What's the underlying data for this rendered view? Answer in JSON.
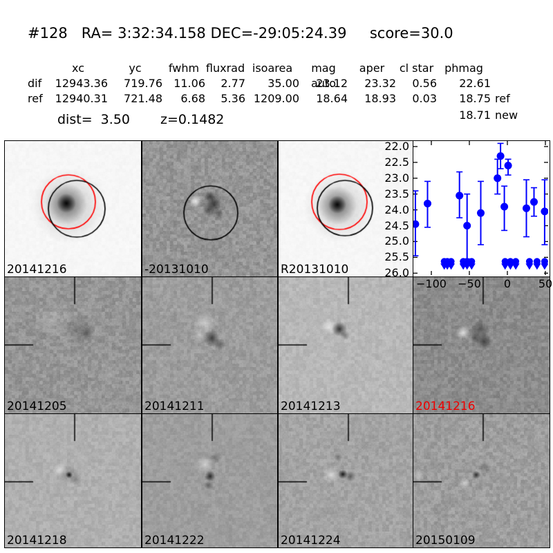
{
  "header": {
    "title": "#128   RA= 3:32:34.158 DEC=-29:05:24.39     score=30.0"
  },
  "table": {
    "columns": [
      "xc",
      "yc",
      "fwhm",
      "fluxrad",
      "isoarea",
      "mag auto",
      "aper",
      "cl star",
      "phmag"
    ],
    "rows": [
      {
        "label": "dif",
        "values": [
          "12943.36",
          "719.76",
          "11.06",
          "2.77",
          "35.00",
          "23.12",
          "23.32",
          "0.56",
          "22.61"
        ],
        "suffix": ""
      },
      {
        "label": "ref",
        "values": [
          "12940.31",
          "721.48",
          "6.68",
          "5.36",
          "1209.00",
          "18.64",
          "18.93",
          "0.03",
          "18.75"
        ],
        "suffix": "ref"
      }
    ],
    "extra": {
      "value": "18.71",
      "suffix": "new"
    },
    "dist": "dist=  3.50",
    "redshift": "z=0.1482"
  },
  "panels": [
    {
      "label": "20141216",
      "label_color": "#000000"
    },
    {
      "label": "-20131010",
      "label_color": "#000000"
    },
    {
      "label": "R20131010",
      "label_color": "#000000"
    },
    {
      "label": "",
      "label_color": ""
    },
    {
      "label": "20141205",
      "label_color": "#000000"
    },
    {
      "label": "20141211",
      "label_color": "#000000"
    },
    {
      "label": "20141213",
      "label_color": "#000000"
    },
    {
      "label": "20141216",
      "label_color": "#ee0000"
    },
    {
      "label": "20141218",
      "label_color": "#000000"
    },
    {
      "label": "20141222",
      "label_color": "#000000"
    },
    {
      "label": "20141224",
      "label_color": "#000000"
    },
    {
      "label": "20150109",
      "label_color": "#000000"
    }
  ],
  "chart_data": {
    "type": "scatter",
    "title": "",
    "xlabel": "",
    "ylabel": "",
    "xlim": [
      -123,
      56
    ],
    "ylim": [
      26.1,
      21.8
    ],
    "y_axis_inverted": true,
    "grid": false,
    "marker_color": "#0000ff",
    "x_ticks": [
      -100,
      -50,
      0,
      50
    ],
    "x_tick_labels": [
      "−100",
      "−50",
      "0",
      "50"
    ],
    "y_ticks": [
      22.0,
      22.5,
      23.0,
      23.5,
      24.0,
      24.5,
      25.0,
      25.5,
      26.0
    ],
    "y_tick_labels": [
      "22.0",
      "22.5",
      "23.0",
      "23.5",
      "24.0",
      "24.5",
      "25.0",
      "25.5",
      "26.0"
    ],
    "series": [
      {
        "name": "photometry",
        "points": [
          {
            "x": -121,
            "mag": 24.45,
            "lo": 23.4,
            "hi": 25.45
          },
          {
            "x": -105,
            "mag": 23.8,
            "lo": 23.1,
            "hi": 24.55
          },
          {
            "x": -63,
            "mag": 23.55,
            "lo": 22.8,
            "hi": 24.25
          },
          {
            "x": -53,
            "mag": 24.5,
            "lo": 23.5,
            "hi": 25.55
          },
          {
            "x": -35,
            "mag": 24.1,
            "lo": 23.1,
            "hi": 25.1
          },
          {
            "x": -13,
            "mag": 23.0,
            "lo": 22.4,
            "hi": 23.5
          },
          {
            "x": -9,
            "mag": 22.3,
            "lo": 21.9,
            "hi": 22.7
          },
          {
            "x": -4,
            "mag": 23.9,
            "lo": 23.25,
            "hi": 24.65
          },
          {
            "x": 1,
            "mag": 22.6,
            "lo": 22.4,
            "hi": 22.9
          },
          {
            "x": 25,
            "mag": 23.95,
            "lo": 23.05,
            "hi": 24.85
          },
          {
            "x": 35,
            "mag": 23.75,
            "lo": 23.3,
            "hi": 24.2
          },
          {
            "x": 49,
            "mag": 24.05,
            "lo": 23.05,
            "hi": 25.1
          }
        ]
      }
    ],
    "upper_limits": {
      "mag": 25.5,
      "x": [
        -83,
        -79,
        -74,
        -58,
        -53,
        -47,
        -3,
        4,
        11,
        29,
        39,
        49
      ]
    }
  }
}
